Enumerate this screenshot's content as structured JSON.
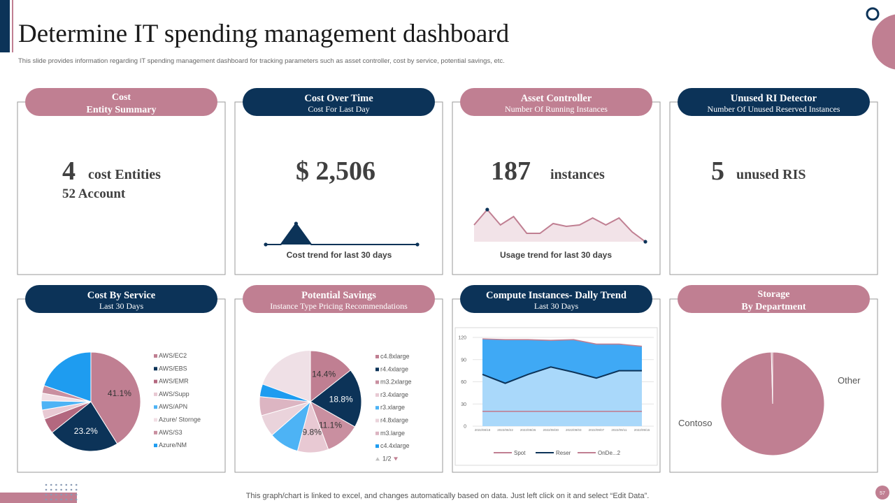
{
  "header": {
    "title": "Determine IT spending management dashboard",
    "subtitle": "This slide provides information regarding IT  spending management  dashboard for tracking parameters such as asset controller, cost by service, potential savings, etc."
  },
  "panels": [
    {
      "title_lines": [
        "Cost",
        "Entity Summary"
      ],
      "color": "#c07f92",
      "kpi": {
        "value": 4,
        "unit": "cost Entities",
        "note": "52 Account"
      }
    },
    {
      "title": "Cost Over Time",
      "subtitle": "Cost For Last Day",
      "color": "#0c3358",
      "kpi": {
        "value": 2506,
        "label": "$ 2,506"
      }
    },
    {
      "title": "Asset Controller",
      "subtitle": "Number Of Running Instances",
      "color": "#c07f92",
      "kpi": {
        "value": 187,
        "unit": "instances"
      }
    },
    {
      "title": "Unused RI Detector",
      "subtitle": "Number Of Unused Reserved Instances",
      "color": "#0c3358",
      "kpi": {
        "value": 5,
        "unit": "unused RIS"
      }
    },
    {
      "title": "Cost By Service",
      "subtitle": "Last 30 Days",
      "color": "#0c3358"
    },
    {
      "title": "Potential Savings",
      "subtitle": "Instance Type Pricing Recommendations",
      "color": "#c07f92"
    },
    {
      "title": "Compute Instances- Dally Trend",
      "subtitle": "Last 30 Days",
      "color": "#0c3358"
    },
    {
      "title_lines": [
        "Storage",
        "By Department"
      ],
      "color": "#c07f92"
    }
  ],
  "chart_data": [
    {
      "type": "line",
      "caption": "Cost trend for last 30 days",
      "values": [
        0,
        0,
        1,
        0,
        0,
        0,
        0,
        0,
        0,
        0,
        0
      ],
      "color": "#0c3358",
      "fill": "#0c3358"
    },
    {
      "type": "line",
      "caption": "Usage trend for last 30 days",
      "values": [
        24,
        46,
        24,
        36,
        12,
        12,
        26,
        22,
        24,
        34,
        24,
        34,
        14,
        0
      ],
      "color": "#c07f92",
      "fill": "#f2e3e8"
    },
    {
      "type": "pie",
      "legend": "right",
      "categories": [
        "AWS/EC2",
        "AWS/EBS",
        "AWS/EMR",
        "AWS/Supp",
        "AWS/APN",
        "Azure/ Stornge",
        "AWS/S3",
        "Azure/NM"
      ],
      "values": [
        41.1,
        23.2,
        5,
        3,
        3,
        2.5,
        2.5,
        19.7
      ],
      "value_labels": [
        "41.1%",
        "23.2%",
        null,
        null,
        null,
        null,
        null,
        null
      ],
      "colors": [
        "#c07f92",
        "#0c3358",
        "#b3687f",
        "#e8c9d3",
        "#4db3f5",
        "#f1dfe5",
        "#c98fa0",
        "#1e9cf0"
      ]
    },
    {
      "type": "pie",
      "legend": "right",
      "pager": "1/2",
      "categories": [
        "c4.8xlarge",
        "r4.4xlarge",
        "m3.2xlarge",
        "r3.4xlarge",
        "r3.xlarge",
        "r4.8xlarge",
        "m3.large",
        "c4.4xlarge"
      ],
      "values": [
        14.4,
        18.8,
        11.1,
        9.8,
        9.5,
        7,
        6,
        4
      ],
      "value_labels": [
        "14.4%",
        "18.8%",
        "11.1%",
        "9.8%",
        null,
        null,
        null,
        null
      ],
      "colors": [
        "#c07f92",
        "#0c3358",
        "#c98fa0",
        "#e8c9d3",
        "#4db3f5",
        "#ead3db",
        "#dcb5c2",
        "#1e9cf0"
      ]
    },
    {
      "type": "area",
      "legend": "bottom",
      "grid": true,
      "categories": [
        "2022/08/18",
        "2022/08/22",
        "2022/08/26",
        "2022/08/30",
        "2022/09/03",
        "2022/09/07",
        "2022/09/11",
        "2022/09/15"
      ],
      "ylim": [
        0,
        120
      ],
      "yticks": [
        0,
        30,
        60,
        90,
        120
      ],
      "series": [
        {
          "name": "Spot",
          "color": "#c07f92",
          "fill": null,
          "values": [
            20,
            20,
            20,
            20,
            20,
            20,
            20,
            20
          ]
        },
        {
          "name": "Reser",
          "color": "#0c3358",
          "fill": "#a9d8fa",
          "values": [
            70,
            58,
            70,
            80,
            73,
            65,
            75,
            75
          ]
        },
        {
          "name": "OnDe...2",
          "color": "#c07f92",
          "fill": "#3fa9f5",
          "values": [
            118,
            117,
            117,
            116,
            117,
            111,
            111,
            108
          ]
        }
      ]
    },
    {
      "type": "pie",
      "legend": "callout",
      "categories": [
        "Contoso",
        "Other"
      ],
      "values": [
        99.6,
        0.4
      ],
      "colors": [
        "#c07f92",
        "#c07f92"
      ]
    }
  ],
  "footer": {
    "note": "This graph/chart is linked to excel,  and changes automatically based on data. Just left click on it and select “Edit Data”.",
    "page_number": "57"
  }
}
